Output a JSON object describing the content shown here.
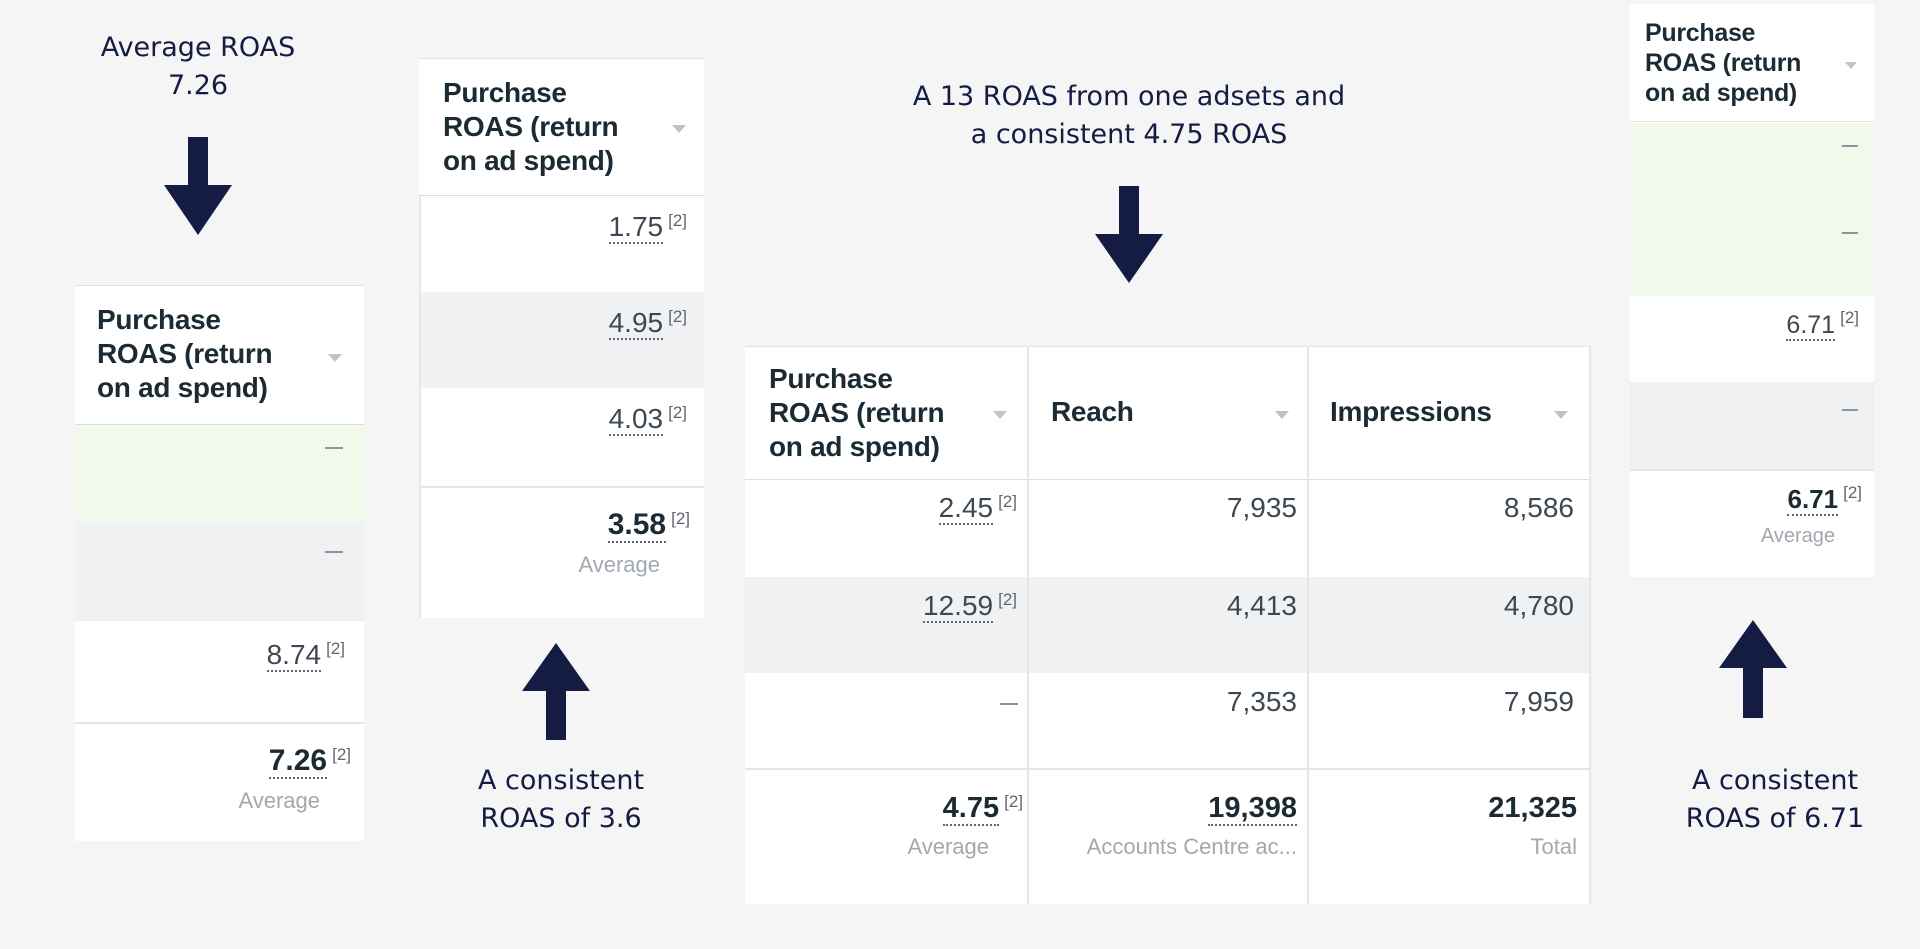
{
  "annotations": {
    "panel1": [
      "Average ROAS",
      "7.26"
    ],
    "panel2": [
      "A consistent",
      "ROAS of 3.6"
    ],
    "panel3": [
      "A 13 ROAS from one adsets and",
      "a consistent 4.75  ROAS"
    ],
    "panel4": [
      "A consistent",
      "ROAS of 6.71"
    ]
  },
  "column_header": {
    "roas": [
      "Purchase",
      "ROAS (return",
      "on ad spend)"
    ],
    "reach": "Reach",
    "impressions": "Impressions"
  },
  "footnote_marker": "[2]",
  "panel1": {
    "rows": [
      "—",
      "—",
      "8.74"
    ],
    "total_value": "7.26",
    "total_label": "Average"
  },
  "panel2": {
    "rows": [
      "1.75",
      "4.95",
      "4.03"
    ],
    "total_value": "3.58",
    "total_label": "Average"
  },
  "panel3": {
    "rows": [
      {
        "roas": "2.45",
        "reach": "7,935",
        "impressions": "8,586"
      },
      {
        "roas": "12.59",
        "reach": "4,413",
        "impressions": "4,780"
      },
      {
        "roas": "—",
        "reach": "7,353",
        "impressions": "7,959"
      }
    ],
    "total": {
      "roas": "4.75",
      "roas_label": "Average",
      "reach": "19,398",
      "reach_label": "Accounts Centre ac...",
      "impressions": "21,325",
      "impressions_label": "Total"
    }
  },
  "panel4": {
    "rows": [
      "—",
      "—",
      "6.71",
      "—"
    ],
    "total_value": "6.71",
    "total_label": "Average"
  },
  "colors": {
    "background": "#f5f5f6",
    "arrow": "#141c44",
    "row_highlight_green": "#f1f9ea",
    "row_highlight_grey": "#f0f1f3"
  }
}
